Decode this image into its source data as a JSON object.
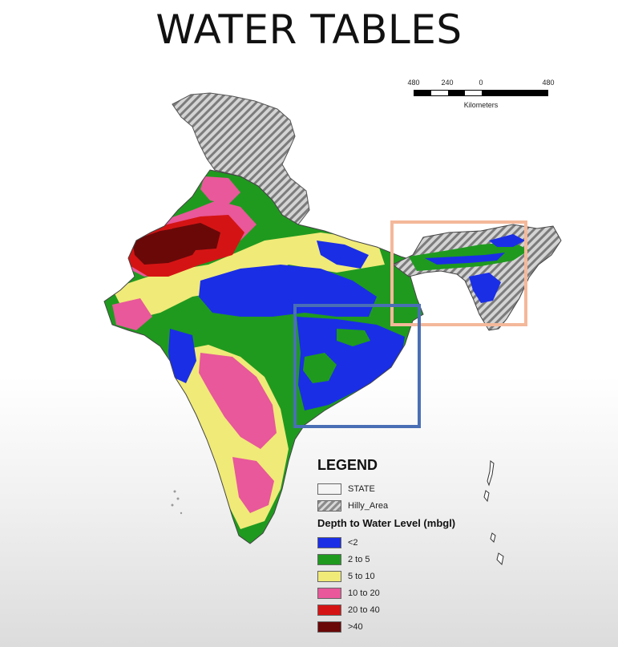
{
  "title": "WATER TABLES",
  "scale": {
    "labels": [
      "480",
      "240",
      "0",
      "480"
    ],
    "unit": "Kilometers"
  },
  "legend": {
    "title": "LEGEND",
    "state_label": "STATE",
    "hilly_label": "Hilly_Area",
    "depth_title": "Depth to Water Level (mbgl)",
    "classes": [
      {
        "label": "<2",
        "color": "#1a2ee6"
      },
      {
        "label": "2 to 5",
        "color": "#1f9a1f"
      },
      {
        "label": "5 to 10",
        "color": "#f0ea78"
      },
      {
        "label": "10 to 20",
        "color": "#e8589a"
      },
      {
        "label": "20 to 40",
        "color": "#d41414"
      },
      {
        "label": ">40",
        "color": "#6a0808"
      }
    ]
  },
  "highlights": [
    {
      "name": "northeast",
      "color": "#f4b89a"
    },
    {
      "name": "east-coast",
      "color": "#4a6fb5"
    }
  ]
}
